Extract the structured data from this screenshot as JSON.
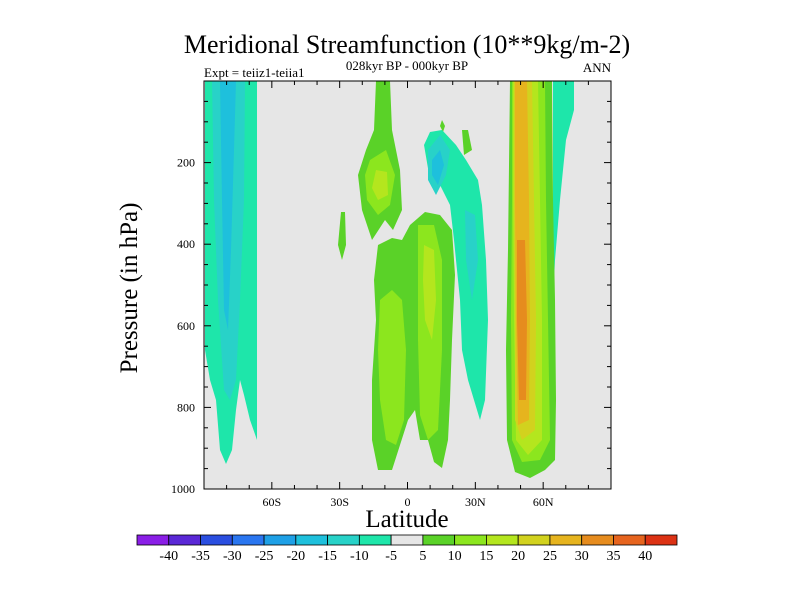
{
  "chart_data": {
    "type": "heatmap",
    "title": "Meridional Streamfunction (10**9kg/m-2)",
    "subtitle_left": "Expt = teiiz1-teiia1",
    "subtitle_center": "028kyr BP - 000kyr BP",
    "subtitle_right": "ANN",
    "xlabel": "Latitude",
    "ylabel": "Pressure (in hPa)",
    "xlim": [
      -90,
      90
    ],
    "ylim": [
      1000,
      0
    ],
    "x_ticks": [
      {
        "value": -60,
        "label": "60S"
      },
      {
        "value": -30,
        "label": "30S"
      },
      {
        "value": 0,
        "label": "0"
      },
      {
        "value": 30,
        "label": "30N"
      },
      {
        "value": 60,
        "label": "60N"
      }
    ],
    "y_ticks": [
      {
        "value": 200,
        "label": "200"
      },
      {
        "value": 400,
        "label": "400"
      },
      {
        "value": 600,
        "label": "600"
      },
      {
        "value": 800,
        "label": "800"
      },
      {
        "value": 1000,
        "label": "1000"
      }
    ],
    "background_color": "#e6e6e6",
    "levels": [
      -40,
      -35,
      -30,
      -25,
      -20,
      -15,
      -10,
      -5,
      5,
      10,
      15,
      20,
      25,
      30,
      35,
      40
    ],
    "colorbar_labels": [
      "-40",
      "-35",
      "-30",
      "-25",
      "-20",
      "-15",
      "-10",
      "-5",
      "5",
      "10",
      "15",
      "20",
      "25",
      "30",
      "35",
      "40"
    ],
    "colorbar_colors": [
      "#8a1ee6",
      "#5a28d6",
      "#2a4ee0",
      "#2a76f0",
      "#1ea0e6",
      "#1ec0dc",
      "#28d2c8",
      "#1ee6aa",
      "#e6e6e6",
      "#5ad228",
      "#8ce61e",
      "#b4e61e",
      "#d2d21e",
      "#e6b41e",
      "#e68c1e",
      "#e6641e",
      "#dc3214"
    ],
    "colorbar_position": "bottom",
    "cells": [
      {
        "lat": -84,
        "p": 450,
        "value": -5
      },
      {
        "lat": -79,
        "p": 500,
        "value": -10
      },
      {
        "lat": -79,
        "p": 300,
        "value": -15
      },
      {
        "lat": -68,
        "p": 500,
        "value": -5
      },
      {
        "lat": -12,
        "p": 230,
        "value": 15
      },
      {
        "lat": -9,
        "p": 700,
        "value": 10
      },
      {
        "lat": 11,
        "p": 550,
        "value": 15
      },
      {
        "lat": 14,
        "p": 250,
        "value": -10
      },
      {
        "lat": 50,
        "p": 600,
        "value": 30
      },
      {
        "lat": 66,
        "p": 300,
        "value": -5
      }
    ]
  }
}
